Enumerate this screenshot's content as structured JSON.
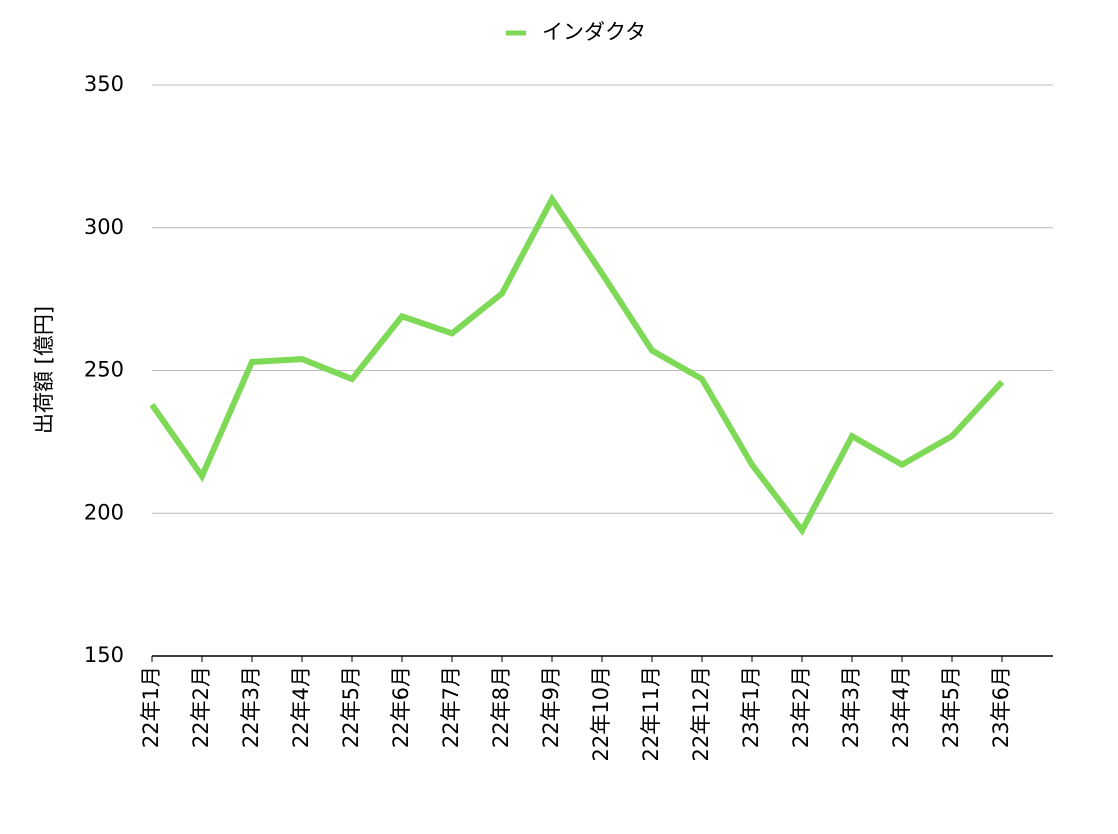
{
  "chart_data": {
    "type": "line",
    "y_label": "出荷額 [億円]",
    "categories": [
      "22年1月",
      "22年2月",
      "22年3月",
      "22年4月",
      "22年5月",
      "22年6月",
      "22年7月",
      "22年8月",
      "22年9月",
      "22年10月",
      "22年11月",
      "22年12月",
      "23年1月",
      "23年2月",
      "23年3月",
      "23年4月",
      "23年5月",
      "23年6月"
    ],
    "series": [
      {
        "name": "インダクタ",
        "color": "#7ed957",
        "values": [
          238,
          213,
          253,
          254,
          247,
          269,
          263,
          277,
          310,
          284,
          257,
          247,
          217,
          194,
          227,
          217,
          227,
          246
        ]
      }
    ],
    "ylim": [
      150,
      350
    ],
    "yticks": [
      150,
      200,
      250,
      300,
      350
    ],
    "grid": true,
    "legend": "top"
  }
}
